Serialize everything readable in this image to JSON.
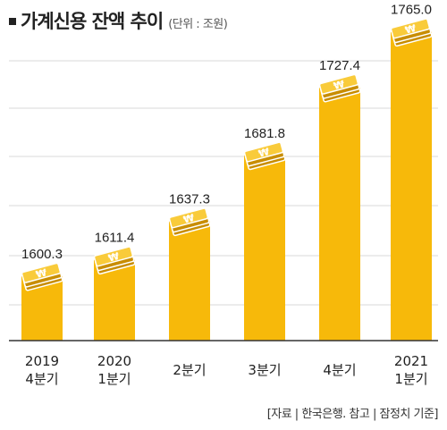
{
  "chart_data": {
    "type": "bar",
    "title": "가계신용 잔액 추이",
    "unit": "(단위 : 조원)",
    "categories": [
      [
        "2019",
        "4분기"
      ],
      [
        "2020",
        "1분기"
      ],
      [
        "2분기"
      ],
      [
        "3분기"
      ],
      [
        "4분기"
      ],
      [
        "2021",
        "1분기"
      ]
    ],
    "values": [
      1600.3,
      1611.4,
      1637.3,
      1681.8,
      1727.4,
      1765.0
    ],
    "value_labels": [
      "1600.3",
      "1611.4",
      "1637.3",
      "1681.8",
      "1727.4",
      "1765.0"
    ],
    "grid": true,
    "source": "[자료 | 한국은행. 참고 | 잠정치 기준]",
    "colors": {
      "bar": "#F7B90A",
      "icon": "#F9CB3A",
      "icon_dark": "#C88D00",
      "grid": "#D8D8D8",
      "axis": "#333333"
    }
  }
}
